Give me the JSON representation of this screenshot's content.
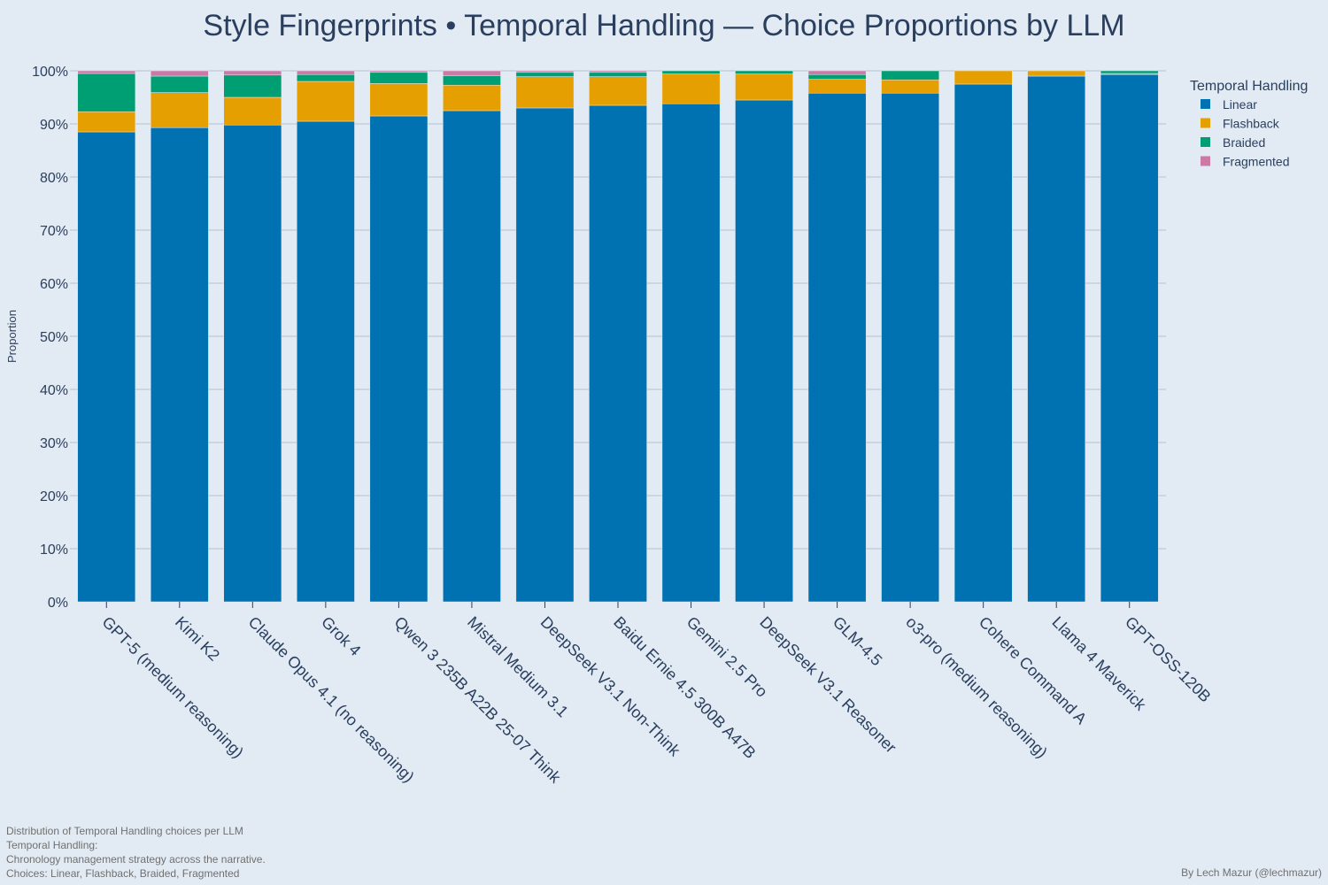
{
  "chart_data": {
    "type": "bar",
    "stacked": true,
    "title": "Style Fingerprints • Temporal Handling — Choice Proportions by LLM",
    "ylabel": "Proportion",
    "xlabel": "",
    "ylim": [
      0,
      1
    ],
    "y_ticks": [
      "0%",
      "10%",
      "20%",
      "30%",
      "40%",
      "50%",
      "60%",
      "70%",
      "80%",
      "90%",
      "100%"
    ],
    "grid": "horizontal",
    "legend_title": "Temporal Handling",
    "legend_position": "top-right",
    "categories": [
      "GPT-5 (medium reasoning)",
      "Kimi K2",
      "Claude Opus 4.1 (no reasoning)",
      "Grok 4",
      "Qwen 3 235B A22B 25-07 Think",
      "Mistral Medium 3.1",
      "DeepSeek V3.1 Non-Think",
      "Baidu Ernie 4.5 300B A47B",
      "Gemini 2.5 Pro",
      "DeepSeek V3.1 Reasoner",
      "GLM-4.5",
      "o3-pro (medium reasoning)",
      "Cohere Command A",
      "Llama 4 Maverick",
      "GPT-OSS-120B"
    ],
    "series": [
      {
        "name": "Linear",
        "color": "#0072b2",
        "values": [
          0.885,
          0.893,
          0.898,
          0.905,
          0.915,
          0.925,
          0.93,
          0.935,
          0.938,
          0.945,
          0.958,
          0.958,
          0.975,
          0.99,
          0.993
        ]
      },
      {
        "name": "Flashback",
        "color": "#e69f00",
        "values": [
          0.038,
          0.066,
          0.052,
          0.075,
          0.061,
          0.048,
          0.059,
          0.054,
          0.056,
          0.049,
          0.026,
          0.025,
          0.025,
          0.01,
          0.002
        ]
      },
      {
        "name": "Braided",
        "color": "#009e73",
        "values": [
          0.072,
          0.031,
          0.042,
          0.013,
          0.021,
          0.018,
          0.008,
          0.008,
          0.006,
          0.006,
          0.009,
          0.017,
          0.0,
          0.0,
          0.005
        ]
      },
      {
        "name": "Fragmented",
        "color": "#cc79a7",
        "values": [
          0.005,
          0.01,
          0.008,
          0.007,
          0.003,
          0.009,
          0.003,
          0.003,
          0.0,
          0.0,
          0.007,
          0.0,
          0.0,
          0.0,
          0.0
        ]
      }
    ]
  },
  "footnote": {
    "line1": "Distribution of Temporal Handling choices per LLM",
    "line2": "Temporal Handling:",
    "line3": "Chronology management strategy across the narrative.",
    "line4": "Choices: Linear, Flashback, Braided, Fragmented"
  },
  "credit": "By Lech Mazur (@lechmazur)"
}
